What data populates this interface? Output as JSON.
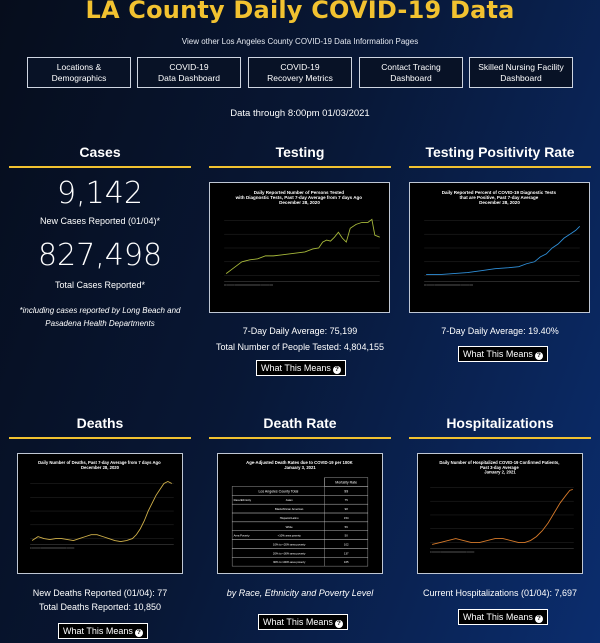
{
  "header": {
    "title": "LA County Daily COVID-19 Data",
    "subtitle": "View other Los Angeles County COVID-19 Data Information Pages",
    "nav": [
      "Locations &\nDemographics",
      "COVID-19\nData Dashboard",
      "COVID-19\nRecovery Metrics",
      "Contact Tracing\nDashboard",
      "Skilled Nursing Facility\nDashboard"
    ],
    "data_through": "Data through 8:00pm 01/03/2021"
  },
  "cases": {
    "heading": "Cases",
    "new_value": "9,142",
    "new_label": "New Cases Reported (01/04)*",
    "total_value": "827,498",
    "total_label": "Total Cases Reported*",
    "note": "*including cases reported by Long Beach and Pasadena Health Departments"
  },
  "testing": {
    "heading": "Testing",
    "chart_title": "Daily Reported Number of Persons Tested with Diagnostic Tests, Past 7-day Average from 7 days Ago December 28, 2020",
    "avg": "7-Day Daily Average: 75,199",
    "total": "Total Number of People Tested: 4,804,155",
    "button": "What This Means"
  },
  "positivity": {
    "heading": "Testing Positivity Rate",
    "chart_title": "Daily Reported Percent of COVID-19 Diagnostic Tests that are Positive, Past 7-day Average December 28, 2020",
    "avg": "7-Day Daily Average: 19.40%",
    "button": "What This Means"
  },
  "deaths": {
    "heading": "Deaths",
    "chart_title": "Daily Number of Deaths, Past 7-day Average from 7 days Ago December 28, 2020",
    "new": "New Deaths Reported (01/04): 77",
    "total": "Total Deaths Reported: 10,850",
    "button": "What This Means"
  },
  "death_rate": {
    "heading": "Death Rate",
    "chart_title": "Age-Adjusted Death Rates due to COVID-19 per 100K January 3, 2021",
    "col_header": "Mortality Rate",
    "rows": [
      {
        "group": "",
        "label": "Los Angeles County Total",
        "value": "99"
      },
      {
        "group": "Race/Ethnicity",
        "label": "Asian",
        "value": "75"
      },
      {
        "group": "",
        "label": "Black/African American",
        "value": "98"
      },
      {
        "group": "",
        "label": "Hispanic/Latino",
        "value": "154"
      },
      {
        "group": "",
        "label": "White",
        "value": "56"
      },
      {
        "group": "Area Poverty",
        "label": "<10% area poverty",
        "value": "50"
      },
      {
        "group": "",
        "label": "10% to <20% area poverty",
        "value": "102"
      },
      {
        "group": "",
        "label": "20% to <30% area poverty",
        "value": "137"
      },
      {
        "group": "",
        "label": "30% to 100% area poverty",
        "value": "165"
      }
    ],
    "caption": "by Race, Ethnicity and Poverty Level",
    "button": "What This Means"
  },
  "hospitalizations": {
    "heading": "Hospitalizations",
    "chart_title": "Daily Number of Hospitalized COVID-19 Confirmed Patients, Past 3-day Average January 2, 2021",
    "current": "Current Hospitalizations (01/04): 7,697",
    "button": "What This Means"
  },
  "colors": {
    "accent": "#f2c230",
    "testing_line": "#a6b83a",
    "positivity_line": "#2f8fd8",
    "deaths_line": "#d2b24a",
    "hosp_line": "#d77a2a"
  },
  "icons": {
    "info": "question-circle-icon"
  }
}
